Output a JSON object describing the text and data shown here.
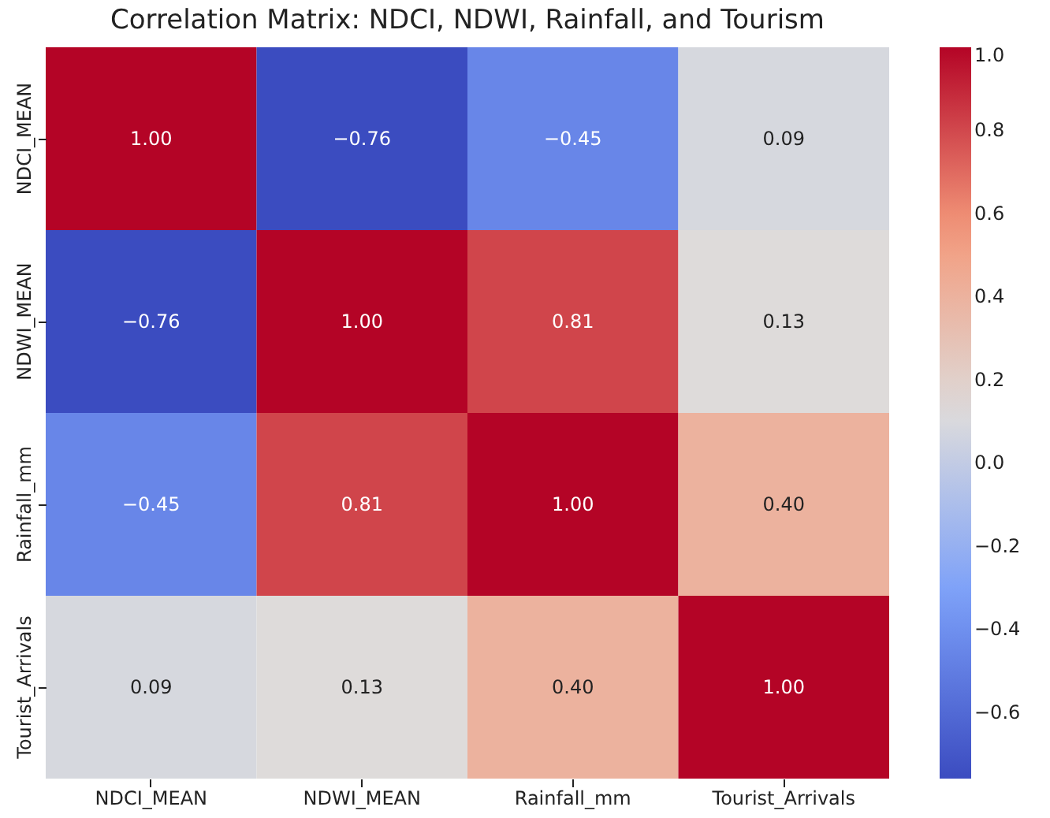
{
  "chart_data": {
    "type": "heatmap",
    "title": "Correlation Matrix: NDCI, NDWI, Rainfall, and Tourism",
    "categories": [
      "NDCI_MEAN",
      "NDWI_MEAN",
      "Rainfall_mm",
      "Tourist_Arrivals"
    ],
    "y_categories": [
      "NDCI_MEAN",
      "NDWI_MEAN",
      "Rainfall_mm",
      "Tourist_Arrivals"
    ],
    "cells": [
      [
        1.0,
        -0.76,
        -0.45,
        0.09
      ],
      [
        -0.76,
        1.0,
        0.81,
        0.13
      ],
      [
        -0.45,
        0.81,
        1.0,
        0.4
      ],
      [
        0.09,
        0.13,
        0.4,
        1.0
      ]
    ],
    "cell_labels": [
      [
        "1.00",
        "−0.76",
        "−0.45",
        "0.09"
      ],
      [
        "−0.76",
        "1.00",
        "0.81",
        "0.13"
      ],
      [
        "−0.45",
        "0.81",
        "1.00",
        "0.40"
      ],
      [
        "0.09",
        "0.13",
        "0.40",
        "1.00"
      ]
    ],
    "clim": [
      -0.76,
      1.0
    ],
    "cticks": [
      {
        "value": -0.6,
        "label": "−0.6"
      },
      {
        "value": -0.4,
        "label": "−0.4"
      },
      {
        "value": -0.2,
        "label": "−0.2"
      },
      {
        "value": 0,
        "label": "0.0"
      },
      {
        "value": 0.2,
        "label": "0.2"
      },
      {
        "value": 0.4,
        "label": "0.4"
      },
      {
        "value": 0.6,
        "label": "0.6"
      },
      {
        "value": 0.8,
        "label": "0.8"
      },
      {
        "value": 1,
        "label": "1.0"
      }
    ]
  }
}
